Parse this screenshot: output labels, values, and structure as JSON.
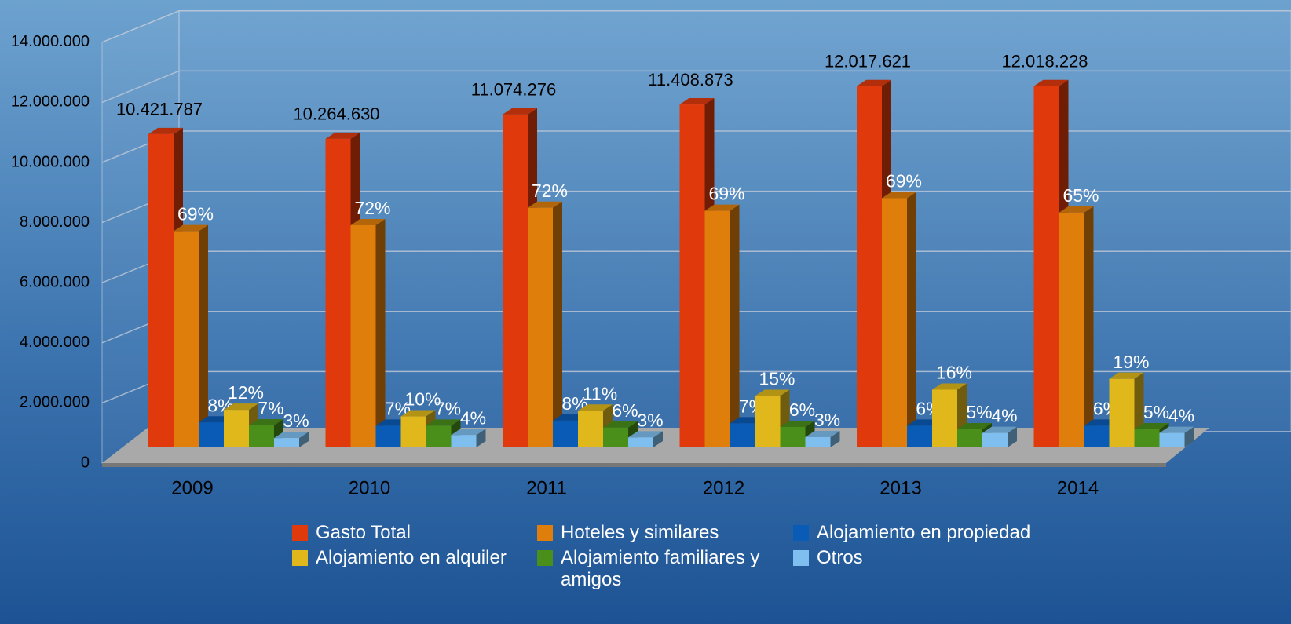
{
  "chart_data": {
    "type": "bar3d",
    "categories": [
      "2009",
      "2010",
      "2011",
      "2012",
      "2013",
      "2014"
    ],
    "series": [
      {
        "name": "Gasto Total",
        "color": "#e03a0c",
        "values": [
          10421787,
          10264630,
          11074276,
          11408873,
          12017621,
          12018228
        ],
        "value_labels": [
          "10.421.787",
          "10.264.630",
          "11.074.276",
          "11.408.873",
          "12.017.621",
          "12.018.228"
        ]
      },
      {
        "name": "Hoteles y similares",
        "color": "#e07e0c",
        "values": [
          7190000,
          7390000,
          7970000,
          7870000,
          8290000,
          7810000
        ],
        "share_labels": [
          "69%",
          "72%",
          "72%",
          "69%",
          "69%",
          "65%"
        ]
      },
      {
        "name": "Alojamiento en propiedad",
        "color": "#0a5bb5",
        "values": [
          830000,
          720000,
          890000,
          800000,
          720000,
          720000
        ],
        "share_labels": [
          "8%",
          "7%",
          "8%",
          "7%",
          "6%",
          "6%"
        ]
      },
      {
        "name": "Alojamiento en alquiler",
        "color": "#e0b81c",
        "values": [
          1250000,
          1030000,
          1220000,
          1710000,
          1920000,
          2280000
        ],
        "share_labels": [
          "12%",
          "10%",
          "11%",
          "15%",
          "16%",
          "19%"
        ]
      },
      {
        "name": "Alojamiento familiares y amigos",
        "color": "#4a8f1a",
        "values": [
          730000,
          720000,
          660000,
          680000,
          600000,
          600000
        ],
        "share_labels": [
          "7%",
          "7%",
          "6%",
          "6%",
          "5%",
          "5%"
        ]
      },
      {
        "name": "Otros",
        "color": "#7fbfef",
        "values": [
          310000,
          410000,
          330000,
          340000,
          480000,
          480000
        ],
        "share_labels": [
          "3%",
          "4%",
          "3%",
          "3%",
          "4%",
          "4%"
        ]
      }
    ],
    "ylim": [
      0,
      14000000
    ],
    "yticks": [
      0,
      {
        "value": 2000000,
        "label": "2.000.000"
      },
      {
        "value": 4000000,
        "label": "4.000.000"
      },
      {
        "value": 6000000,
        "label": "6.000.000"
      },
      {
        "value": 8000000,
        "label": "8.000.000"
      },
      {
        "value": 10000000,
        "label": "10.000.000"
      },
      {
        "value": 12000000,
        "label": "12.000.000"
      },
      {
        "value": 14000000,
        "label": "14.000.000"
      }
    ],
    "grid": true
  }
}
